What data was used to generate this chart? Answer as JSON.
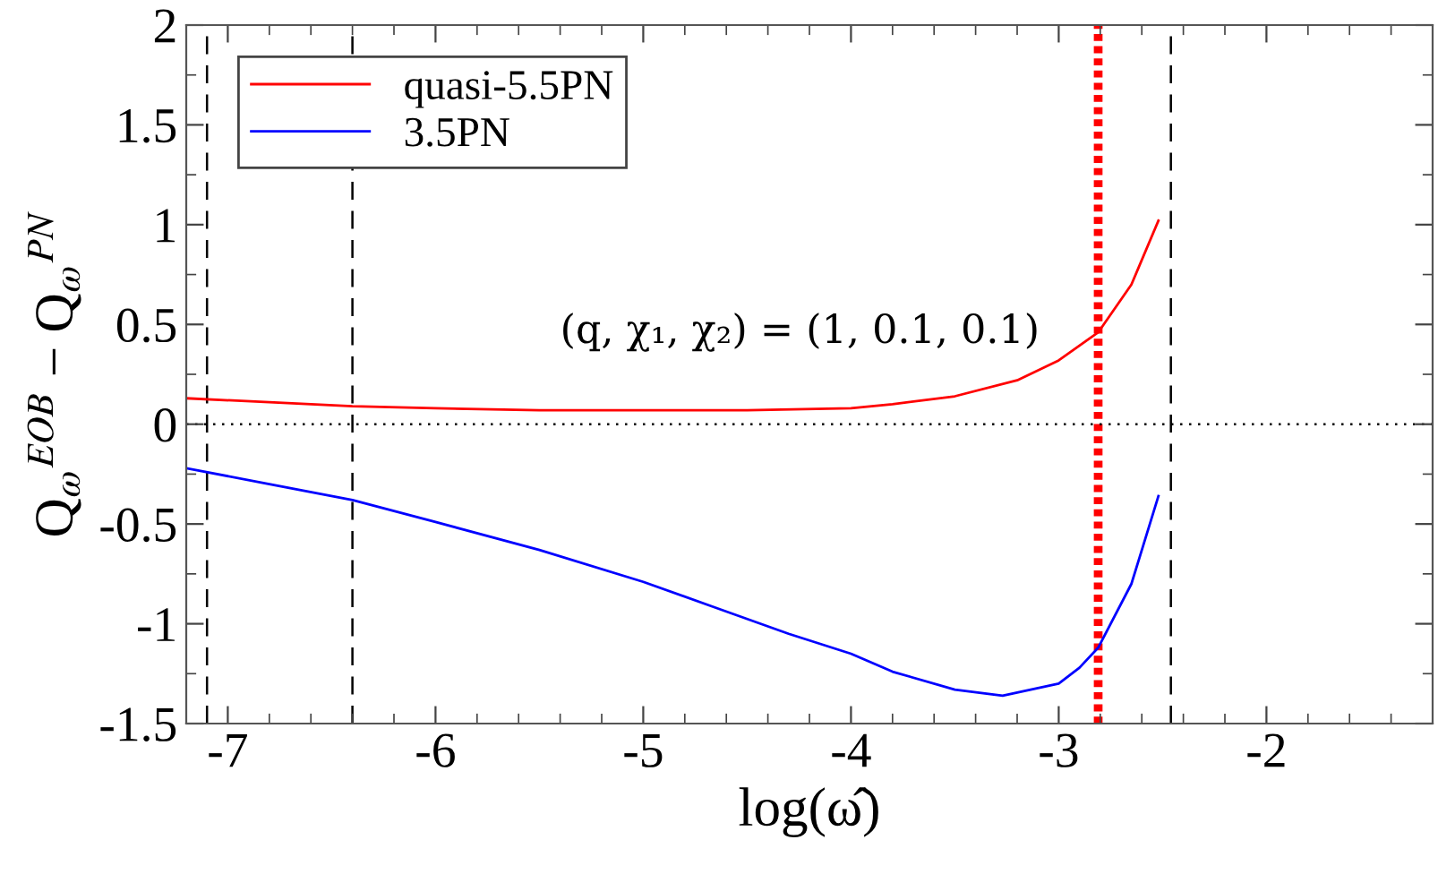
{
  "chart_data": {
    "type": "line",
    "xlabel": "log(ω̂)",
    "ylabel": "Q$_{ω}$$^{EOB}$ − Q$_{ω}$$^{PN}$",
    "annotations": [
      "(q, χ₁, χ₂) = (1, 0.1, 0.1)"
    ],
    "series": [
      {
        "name": "quasi-5.5PN",
        "color": "#ff0000",
        "x": [
          -7.2,
          -6.8,
          -6.4,
          -6.0,
          -5.5,
          -5.0,
          -4.5,
          -4.0,
          -3.8,
          -3.5,
          -3.2,
          -3.0,
          -2.81,
          -2.65,
          -2.52
        ],
        "values": [
          0.13,
          0.11,
          0.09,
          0.08,
          0.07,
          0.07,
          0.07,
          0.08,
          0.1,
          0.14,
          0.22,
          0.32,
          0.46,
          0.7,
          1.02
        ]
      },
      {
        "name": "3.5PN",
        "color": "#0000ff",
        "x": [
          -7.2,
          -6.8,
          -6.4,
          -6.0,
          -5.5,
          -5.0,
          -4.65,
          -4.3,
          -4.0,
          -3.8,
          -3.5,
          -3.27,
          -3.0,
          -2.9,
          -2.81,
          -2.65,
          -2.52
        ],
        "values": [
          -0.22,
          -0.3,
          -0.38,
          -0.49,
          -0.63,
          -0.79,
          -0.92,
          -1.05,
          -1.15,
          -1.24,
          -1.33,
          -1.36,
          -1.3,
          -1.22,
          -1.12,
          -0.8,
          -0.36
        ]
      }
    ],
    "xlim": [
      -7.2,
      -1.2
    ],
    "ylim": [
      -1.5,
      2
    ],
    "xticks": [
      {
        "value": -7,
        "label": "-7"
      },
      {
        "value": -6,
        "label": "-6"
      },
      {
        "value": -5,
        "label": "-5"
      },
      {
        "value": -4,
        "label": "-4"
      },
      {
        "value": -3,
        "label": "-3"
      },
      {
        "value": -2,
        "label": "-2"
      }
    ],
    "yticks": [
      {
        "value": -1.5,
        "label": "-1.5"
      },
      {
        "value": -1,
        "label": "-1"
      },
      {
        "value": -0.5,
        "label": "-0.5"
      },
      0,
      0.5,
      1,
      1.5,
      2
    ],
    "ref_lines": [
      {
        "axis": "x",
        "value": -7.1,
        "color": "#000000",
        "line_style": "dashed"
      },
      {
        "axis": "x",
        "value": -6.4,
        "color": "#000000",
        "line_style": "dashed"
      },
      {
        "axis": "x",
        "value": -2.46,
        "color": "#000000",
        "line_style": "dashed"
      },
      {
        "axis": "x",
        "value": -2.81,
        "color": "#ff0000",
        "line_style": "dotted"
      },
      {
        "axis": "y",
        "value": 0,
        "color": "#000000",
        "line_style": "dotted"
      }
    ],
    "legend": "top left",
    "grid": false,
    "line_style": "solid"
  }
}
